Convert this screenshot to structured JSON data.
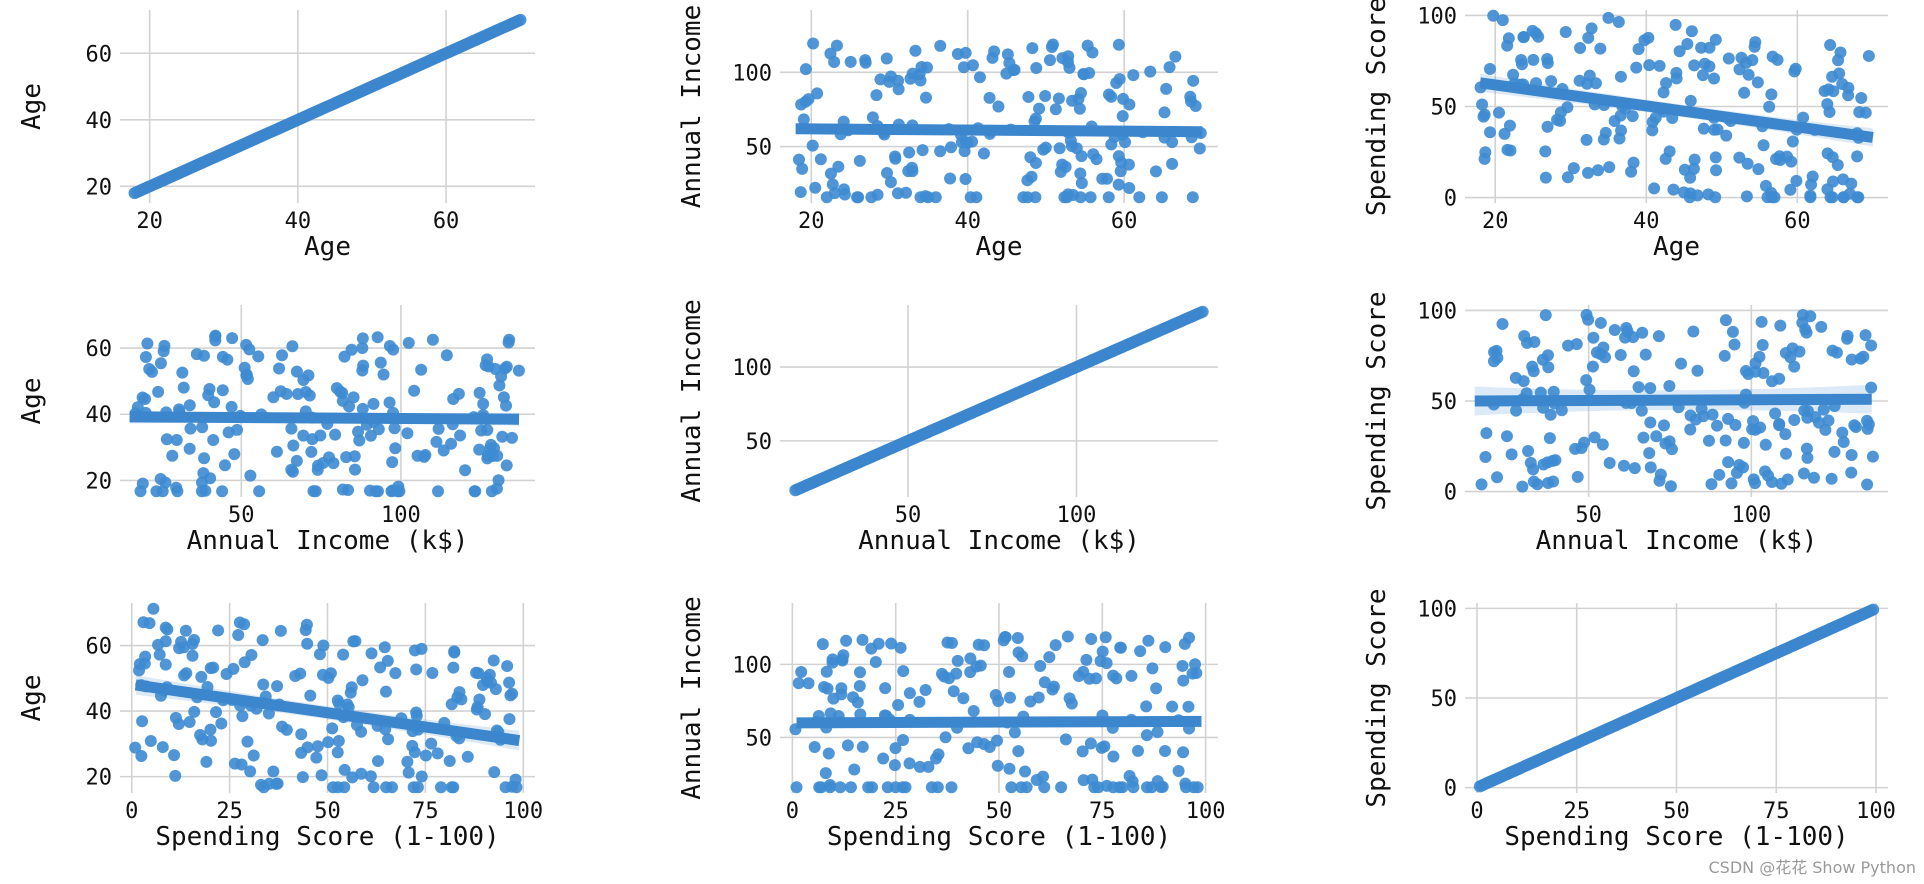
{
  "watermark": "CSDN @花花 Show Python",
  "chart_data": [
    {
      "type": "scatter",
      "row": 0,
      "col": 0,
      "title": "",
      "xlabel": "Age",
      "ylabel": "Age",
      "xlim": [
        16,
        72
      ],
      "ylim": [
        15,
        73
      ],
      "xticks": [
        20,
        40,
        60
      ],
      "yticks": [
        20,
        40,
        60
      ],
      "regression": {
        "kind": "identity"
      }
    },
    {
      "type": "scatter",
      "row": 0,
      "col": 1,
      "title": "",
      "xlabel": "Age",
      "ylabel": "Annual Income",
      "xlim": [
        16,
        72
      ],
      "ylim": [
        12,
        142
      ],
      "xticks": [
        20,
        40,
        60
      ],
      "yticks": [
        50,
        100
      ],
      "regression": {
        "kind": "linear",
        "start": [
          18,
          62
        ],
        "end": [
          70,
          60
        ],
        "ci": 2
      }
    },
    {
      "type": "scatter",
      "row": 0,
      "col": 2,
      "title": "",
      "xlabel": "Age",
      "ylabel": "Spending Score",
      "xlim": [
        16,
        72
      ],
      "ylim": [
        -3,
        103
      ],
      "xticks": [
        20,
        40,
        60
      ],
      "yticks": [
        0,
        50,
        100
      ],
      "regression": {
        "kind": "linear",
        "start": [
          18,
          63
        ],
        "end": [
          70,
          33
        ],
        "ci": 5
      }
    },
    {
      "type": "scatter",
      "row": 1,
      "col": 0,
      "title": "",
      "xlabel": "Annual Income (k$)",
      "ylabel": "Age",
      "xlim": [
        12,
        142
      ],
      "ylim": [
        15,
        73
      ],
      "xticks": [
        50,
        100
      ],
      "yticks": [
        20,
        40,
        60
      ],
      "regression": {
        "kind": "linear",
        "start": [
          15,
          39.2
        ],
        "end": [
          137,
          38.5
        ],
        "ci": 2
      }
    },
    {
      "type": "scatter",
      "row": 1,
      "col": 1,
      "title": "",
      "xlabel": "Annual Income (k$)",
      "ylabel": "Annual Income",
      "xlim": [
        12,
        142
      ],
      "ylim": [
        12,
        142
      ],
      "xticks": [
        50,
        100
      ],
      "yticks": [
        50,
        100
      ],
      "regression": {
        "kind": "identity"
      }
    },
    {
      "type": "scatter",
      "row": 1,
      "col": 2,
      "title": "",
      "xlabel": "Annual Income (k$)",
      "ylabel": "Spending Score",
      "xlim": [
        12,
        142
      ],
      "ylim": [
        -3,
        103
      ],
      "xticks": [
        50,
        100
      ],
      "yticks": [
        0,
        50,
        100
      ],
      "regression": {
        "kind": "linear",
        "start": [
          15,
          50
        ],
        "end": [
          137,
          51
        ],
        "ci": 8
      }
    },
    {
      "type": "scatter",
      "row": 2,
      "col": 0,
      "title": "",
      "xlabel": "Spending Score (1-100)",
      "ylabel": "Age",
      "xlim": [
        -3,
        103
      ],
      "ylim": [
        15,
        73
      ],
      "xticks": [
        0,
        25,
        50,
        75,
        100
      ],
      "yticks": [
        20,
        40,
        60
      ],
      "regression": {
        "kind": "linear",
        "start": [
          1,
          48
        ],
        "end": [
          99,
          31
        ],
        "ci": 3
      }
    },
    {
      "type": "scatter",
      "row": 2,
      "col": 1,
      "title": "",
      "xlabel": "Spending Score (1-100)",
      "ylabel": "Annual Income",
      "xlim": [
        -3,
        103
      ],
      "ylim": [
        12,
        142
      ],
      "xticks": [
        0,
        25,
        50,
        75,
        100
      ],
      "yticks": [
        50,
        100
      ],
      "regression": {
        "kind": "linear",
        "start": [
          1,
          60
        ],
        "end": [
          99,
          61
        ],
        "ci": 3
      }
    },
    {
      "type": "scatter",
      "row": 2,
      "col": 2,
      "title": "",
      "xlabel": "Spending Score (1-100)",
      "ylabel": "Spending Score",
      "xlim": [
        -3,
        103
      ],
      "ylim": [
        -3,
        103
      ],
      "xticks": [
        0,
        25,
        50,
        75,
        100
      ],
      "yticks": [
        0,
        50,
        100
      ],
      "regression": {
        "kind": "identity"
      }
    }
  ]
}
